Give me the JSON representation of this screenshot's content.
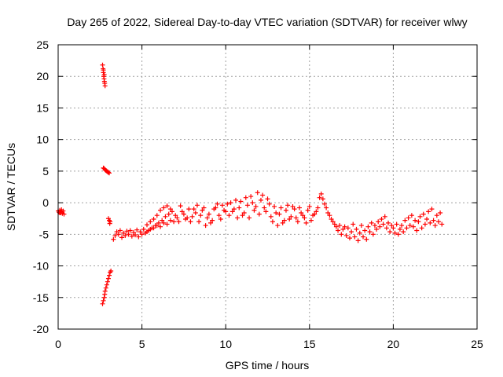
{
  "chart_data": {
    "type": "scatter",
    "title": "Day 265 of 2022, Sidereal Day-to-day VTEC variation (SDTVAR) for receiver wlwy",
    "xlabel": "GPS time / hours",
    "ylabel": "SDTVAR / TECUs",
    "xlim": [
      0,
      25
    ],
    "ylim": [
      -20,
      25
    ],
    "grid": true,
    "marker": "+",
    "x_ticks": [
      "0",
      "5",
      "10",
      "15",
      "20",
      "25"
    ],
    "y_ticks": [
      "25",
      "20",
      "15",
      "10",
      "5",
      "0",
      "-5",
      "-10",
      "-15",
      "-20"
    ],
    "colors": {
      "series": "#ff0000"
    },
    "series": [
      {
        "name": "SDTVAR",
        "points": [
          [
            0.0,
            -1.3
          ],
          [
            0.05,
            -1.5
          ],
          [
            0.1,
            -1.2
          ],
          [
            0.15,
            -1.6
          ],
          [
            0.2,
            -1.4
          ],
          [
            0.25,
            -1.7
          ],
          [
            0.3,
            -1.3
          ],
          [
            0.35,
            -1.8
          ],
          [
            0.2,
            -1.1
          ],
          [
            0.1,
            -1.6
          ],
          [
            2.65,
            21.8
          ],
          [
            2.68,
            21.2
          ],
          [
            2.7,
            20.6
          ],
          [
            2.72,
            20.0
          ],
          [
            2.74,
            19.6
          ],
          [
            2.76,
            19.2
          ],
          [
            2.78,
            18.9
          ],
          [
            2.8,
            18.5
          ],
          [
            2.75,
            20.3
          ],
          [
            2.7,
            21.0
          ],
          [
            2.7,
            5.5
          ],
          [
            2.75,
            5.4
          ],
          [
            2.8,
            5.2
          ],
          [
            2.85,
            5.1
          ],
          [
            2.9,
            5.0
          ],
          [
            2.95,
            4.9
          ],
          [
            3.0,
            4.8
          ],
          [
            3.05,
            4.7
          ],
          [
            3.0,
            -2.5
          ],
          [
            3.05,
            -2.8
          ],
          [
            3.1,
            -3.0
          ],
          [
            3.08,
            -3.3
          ],
          [
            2.65,
            -16.0
          ],
          [
            2.7,
            -15.5
          ],
          [
            2.75,
            -15.0
          ],
          [
            2.78,
            -14.5
          ],
          [
            2.8,
            -14.0
          ],
          [
            2.85,
            -13.5
          ],
          [
            2.9,
            -13.0
          ],
          [
            2.95,
            -12.5
          ],
          [
            3.0,
            -12.0
          ],
          [
            3.05,
            -11.5
          ],
          [
            3.1,
            -11.0
          ],
          [
            3.15,
            -10.8
          ],
          [
            3.3,
            -5.8
          ],
          [
            3.4,
            -5.2
          ],
          [
            3.5,
            -4.6
          ],
          [
            3.6,
            -5.0
          ],
          [
            3.7,
            -4.4
          ],
          [
            3.8,
            -5.5
          ],
          [
            3.9,
            -4.8
          ],
          [
            4.0,
            -5.2
          ],
          [
            4.1,
            -4.5
          ],
          [
            4.2,
            -5.0
          ],
          [
            4.3,
            -4.4
          ],
          [
            4.4,
            -5.3
          ],
          [
            4.5,
            -4.7
          ],
          [
            4.6,
            -5.1
          ],
          [
            4.7,
            -4.3
          ],
          [
            4.8,
            -5.4
          ],
          [
            4.9,
            -4.6
          ],
          [
            5.0,
            -5.0
          ],
          [
            5.1,
            -4.2
          ],
          [
            5.2,
            -4.8
          ],
          [
            5.3,
            -3.5
          ],
          [
            5.4,
            -4.4
          ],
          [
            5.5,
            -3.0
          ],
          [
            5.6,
            -4.0
          ],
          [
            5.7,
            -2.6
          ],
          [
            5.8,
            -3.6
          ],
          [
            5.9,
            -2.0
          ],
          [
            6.0,
            -3.2
          ],
          [
            6.1,
            -1.2
          ],
          [
            6.2,
            -2.8
          ],
          [
            6.3,
            -0.8
          ],
          [
            6.4,
            -2.2
          ],
          [
            6.5,
            -0.5
          ],
          [
            6.6,
            -1.8
          ],
          [
            6.7,
            -1.0
          ],
          [
            6.8,
            -1.4
          ],
          [
            5.3,
            -4.6
          ],
          [
            5.5,
            -4.2
          ],
          [
            5.7,
            -4.0
          ],
          [
            5.9,
            -3.6
          ],
          [
            6.1,
            -3.8
          ],
          [
            6.3,
            -3.2
          ],
          [
            6.5,
            -3.4
          ],
          [
            6.7,
            -2.8
          ],
          [
            6.9,
            -3.0
          ],
          [
            7.1,
            -2.4
          ],
          [
            7.0,
            -2.0
          ],
          [
            7.2,
            -3.0
          ],
          [
            7.4,
            -1.4
          ],
          [
            7.6,
            -2.6
          ],
          [
            7.8,
            -1.0
          ],
          [
            8.0,
            -2.2
          ],
          [
            8.2,
            -1.6
          ],
          [
            8.4,
            -3.0
          ],
          [
            8.6,
            -1.2
          ],
          [
            8.8,
            -3.6
          ],
          [
            9.0,
            -1.8
          ],
          [
            9.2,
            -2.8
          ],
          [
            9.4,
            -0.8
          ],
          [
            9.6,
            -2.0
          ],
          [
            9.8,
            -0.4
          ],
          [
            10.0,
            -1.4
          ],
          [
            7.3,
            -0.5
          ],
          [
            7.5,
            -1.8
          ],
          [
            7.7,
            -2.4
          ],
          [
            7.9,
            -3.0
          ],
          [
            8.1,
            -1.0
          ],
          [
            8.3,
            -0.4
          ],
          [
            8.5,
            -2.0
          ],
          [
            8.7,
            -0.8
          ],
          [
            8.9,
            -2.4
          ],
          [
            9.1,
            -3.2
          ],
          [
            9.3,
            -1.0
          ],
          [
            9.5,
            -0.2
          ],
          [
            9.7,
            -2.6
          ],
          [
            9.9,
            -1.2
          ],
          [
            10.1,
            -0.2
          ],
          [
            10.2,
            -2.0
          ],
          [
            10.3,
            0.0
          ],
          [
            10.5,
            -1.0
          ],
          [
            10.7,
            -2.4
          ],
          [
            10.9,
            0.2
          ],
          [
            11.1,
            -1.6
          ],
          [
            11.3,
            -0.4
          ],
          [
            11.5,
            1.0
          ],
          [
            11.7,
            -1.2
          ],
          [
            11.9,
            1.6
          ],
          [
            12.1,
            0.4
          ],
          [
            12.3,
            -0.8
          ],
          [
            12.5,
            0.6
          ],
          [
            12.7,
            -2.2
          ],
          [
            12.9,
            -0.6
          ],
          [
            10.4,
            -1.4
          ],
          [
            10.6,
            0.4
          ],
          [
            10.8,
            -0.8
          ],
          [
            11.0,
            -2.0
          ],
          [
            11.2,
            0.8
          ],
          [
            11.4,
            -2.4
          ],
          [
            11.6,
            0.0
          ],
          [
            11.8,
            -0.6
          ],
          [
            12.0,
            -1.8
          ],
          [
            12.2,
            1.2
          ],
          [
            12.4,
            -1.4
          ],
          [
            12.6,
            -0.2
          ],
          [
            12.8,
            -3.0
          ],
          [
            13.0,
            -1.6
          ],
          [
            13.1,
            -3.6
          ],
          [
            13.3,
            -0.8
          ],
          [
            13.5,
            -2.8
          ],
          [
            13.7,
            -0.4
          ],
          [
            13.9,
            -2.2
          ],
          [
            14.1,
            -1.0
          ],
          [
            14.3,
            -3.0
          ],
          [
            14.5,
            -1.6
          ],
          [
            14.7,
            -2.4
          ],
          [
            14.9,
            -1.2
          ],
          [
            15.1,
            -2.8
          ],
          [
            15.3,
            -1.8
          ],
          [
            15.5,
            -0.8
          ],
          [
            15.6,
            0.8
          ],
          [
            15.7,
            1.4
          ],
          [
            15.8,
            0.6
          ],
          [
            13.2,
            -1.8
          ],
          [
            13.4,
            -3.2
          ],
          [
            13.6,
            -1.2
          ],
          [
            13.8,
            -2.6
          ],
          [
            14.0,
            -0.6
          ],
          [
            14.2,
            -2.4
          ],
          [
            14.4,
            -0.8
          ],
          [
            14.6,
            -2.0
          ],
          [
            14.8,
            -3.2
          ],
          [
            15.0,
            -0.6
          ],
          [
            15.2,
            -2.0
          ],
          [
            15.4,
            -1.4
          ],
          [
            15.9,
            -0.2
          ],
          [
            16.0,
            -0.8
          ],
          [
            16.1,
            -1.6
          ],
          [
            16.2,
            -2.0
          ],
          [
            16.3,
            -2.6
          ],
          [
            16.4,
            -3.0
          ],
          [
            16.5,
            -3.4
          ],
          [
            16.6,
            -3.8
          ],
          [
            16.7,
            -4.4
          ],
          [
            16.8,
            -3.6
          ],
          [
            16.9,
            -5.0
          ],
          [
            17.0,
            -4.2
          ],
          [
            17.1,
            -3.8
          ],
          [
            17.2,
            -5.2
          ],
          [
            17.3,
            -4.0
          ],
          [
            17.4,
            -5.6
          ],
          [
            17.5,
            -4.6
          ],
          [
            17.6,
            -3.4
          ],
          [
            17.7,
            -5.4
          ],
          [
            17.8,
            -4.2
          ],
          [
            17.9,
            -6.0
          ],
          [
            18.0,
            -4.8
          ],
          [
            18.1,
            -3.6
          ],
          [
            18.2,
            -5.4
          ],
          [
            18.3,
            -4.4
          ],
          [
            18.4,
            -5.8
          ],
          [
            18.5,
            -3.8
          ],
          [
            18.6,
            -4.6
          ],
          [
            18.7,
            -3.2
          ],
          [
            18.8,
            -5.0
          ],
          [
            18.9,
            -3.6
          ],
          [
            19.0,
            -4.2
          ],
          [
            19.1,
            -3.0
          ],
          [
            19.2,
            -3.8
          ],
          [
            19.3,
            -2.6
          ],
          [
            19.4,
            -3.4
          ],
          [
            19.5,
            -2.2
          ],
          [
            19.6,
            -4.0
          ],
          [
            19.7,
            -3.2
          ],
          [
            19.8,
            -4.6
          ],
          [
            19.9,
            -3.6
          ],
          [
            20.0,
            -4.0
          ],
          [
            20.1,
            -4.8
          ],
          [
            20.2,
            -3.4
          ],
          [
            20.3,
            -5.0
          ],
          [
            20.4,
            -4.2
          ],
          [
            20.5,
            -3.6
          ],
          [
            20.6,
            -4.6
          ],
          [
            20.7,
            -2.8
          ],
          [
            20.8,
            -4.0
          ],
          [
            20.9,
            -2.4
          ],
          [
            21.0,
            -3.6
          ],
          [
            21.1,
            -2.0
          ],
          [
            21.2,
            -3.8
          ],
          [
            21.3,
            -2.8
          ],
          [
            21.4,
            -4.4
          ],
          [
            21.5,
            -3.0
          ],
          [
            21.6,
            -2.2
          ],
          [
            21.7,
            -4.0
          ],
          [
            21.8,
            -1.8
          ],
          [
            21.9,
            -3.4
          ],
          [
            22.0,
            -2.6
          ],
          [
            22.1,
            -1.4
          ],
          [
            22.2,
            -3.2
          ],
          [
            22.3,
            -1.0
          ],
          [
            22.4,
            -2.8
          ],
          [
            22.5,
            -3.6
          ],
          [
            22.6,
            -2.0
          ],
          [
            22.7,
            -3.0
          ],
          [
            22.8,
            -1.6
          ],
          [
            22.9,
            -3.4
          ]
        ]
      }
    ]
  }
}
